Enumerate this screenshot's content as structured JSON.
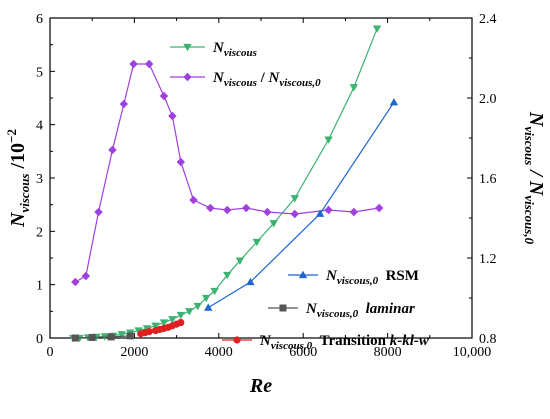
{
  "chart_data": {
    "type": "line",
    "xlabel": "Re",
    "ylabel_left": {
      "main": "N",
      "sub": "viscous",
      "rest": " /10",
      "sup": "−2"
    },
    "ylabel_right": {
      "a_main": "N",
      "a_sub": "viscous",
      "sep": " / ",
      "b_main": "N",
      "b_sub": "viscous,0"
    },
    "xlim": [
      0,
      10000
    ],
    "ylim_left": [
      0,
      6
    ],
    "ylim_right": [
      0.8,
      2.4
    ],
    "x_ticks": [
      0,
      2000,
      4000,
      6000,
      8000,
      10000
    ],
    "x_tick_labels": [
      "0",
      "2000",
      "4000",
      "6000",
      "8000",
      "10,000"
    ],
    "y_left_ticks": [
      0,
      1,
      2,
      3,
      4,
      5,
      6
    ],
    "y_left_tick_labels": [
      "0",
      "1",
      "2",
      "3",
      "4",
      "5",
      "6"
    ],
    "y_right_ticks": [
      0.8,
      1.2,
      1.6,
      2.0,
      2.4
    ],
    "y_right_tick_labels": [
      "0.8",
      "1.2",
      "1.6",
      "2.0",
      "2.4"
    ],
    "series": [
      {
        "name_parts": {
          "main": "N",
          "sub": "viscous"
        },
        "axis": "left",
        "color": "#3cb371",
        "marker": "triangle-down",
        "x": [
          550,
          700,
          900,
          1100,
          1300,
          1500,
          1700,
          1900,
          2100,
          2300,
          2500,
          2700,
          2900,
          3100,
          3300,
          3500,
          3700,
          3900,
          4200,
          4500,
          4900,
          5300,
          5800,
          6600,
          7200,
          7750
        ],
        "y": [
          0,
          0,
          0.01,
          0.02,
          0.03,
          0.04,
          0.07,
          0.1,
          0.14,
          0.18,
          0.23,
          0.29,
          0.35,
          0.43,
          0.5,
          0.6,
          0.75,
          0.88,
          1.18,
          1.45,
          1.8,
          2.15,
          2.62,
          3.72,
          4.7,
          5.8
        ]
      },
      {
        "name_parts": {
          "main1": "N",
          "sub1": "viscous",
          "sep": " / ",
          "main2": "N",
          "sub2": "viscous,0"
        },
        "axis": "right",
        "color": "#a040e0",
        "marker": "diamond",
        "x": [
          600,
          850,
          1150,
          1480,
          1750,
          1980,
          2350,
          2700,
          2900,
          3100,
          3400,
          3800,
          4200,
          4650,
          5150,
          5800,
          6600,
          7200,
          7800
        ],
        "y": [
          1.08,
          1.11,
          1.43,
          1.74,
          1.97,
          2.17,
          2.17,
          2.01,
          1.91,
          1.68,
          1.49,
          1.45,
          1.44,
          1.45,
          1.43,
          1.42,
          1.44,
          1.43,
          1.45
        ]
      },
      {
        "name_parts": {
          "main": "N",
          "sub": "viscous,0",
          "method": "RSM"
        },
        "axis": "left",
        "color": "#1f66d1",
        "marker": "triangle-up",
        "x": [
          3750,
          4750,
          6400,
          8150
        ],
        "y": [
          0.57,
          1.05,
          2.33,
          4.42
        ]
      },
      {
        "name_parts": {
          "main": "N",
          "sub": "viscous,0",
          "method": "laminar"
        },
        "axis": "left",
        "color": "#555555",
        "marker": "square",
        "x": [
          600,
          1000,
          1450,
          1900
        ],
        "y": [
          0,
          0.01,
          0.02,
          0.04
        ]
      },
      {
        "name_parts": {
          "main": "N",
          "sub": "viscous,0",
          "method": "Transition k-kl-w"
        },
        "axis": "left",
        "color": "#e02020",
        "marker": "circle",
        "x": [
          2150,
          2250,
          2350,
          2500,
          2600,
          2700,
          2800,
          2900,
          3000,
          3100
        ],
        "y": [
          0.08,
          0.1,
          0.12,
          0.14,
          0.16,
          0.18,
          0.2,
          0.23,
          0.26,
          0.29
        ]
      }
    ],
    "legend_entries": [
      {
        "main": "N",
        "sub": "viscous",
        "rest": ""
      },
      {
        "main": "N",
        "sub": "viscous",
        "sep": " / ",
        "main2": "N",
        "sub2": "viscous,0"
      },
      {
        "main": "N",
        "sub": "viscous,0",
        "label": "RSM"
      },
      {
        "main": "N",
        "sub": "viscous,0",
        "label": "laminar"
      },
      {
        "main": "N",
        "sub": "viscous,0",
        "label": "Transition ",
        "label_italic": "k-kl-w"
      }
    ],
    "grid": false
  }
}
